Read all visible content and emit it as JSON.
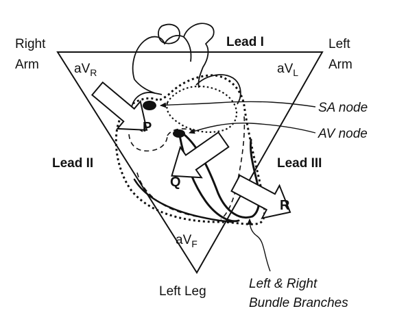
{
  "labels": {
    "right_arm_1": "Right",
    "right_arm_2": "Arm",
    "left_arm_1": "Left",
    "left_arm_2": "Arm",
    "left_leg": "Left Leg",
    "lead_i": "Lead I",
    "lead_ii": "Lead II",
    "lead_iii": "Lead III",
    "avr_main": "aV",
    "avr_sub": "R",
    "avl_main": "aV",
    "avl_sub": "L",
    "avf_main": "aV",
    "avf_sub": "F",
    "sa_node": "SA node",
    "av_node": "AV node",
    "bundle_1": "Left & Right",
    "bundle_2": "Bundle Branches",
    "wave_p": "P",
    "wave_q": "Q",
    "wave_r": "R"
  },
  "colors": {
    "ink": "#111111",
    "background": "#ffffff"
  }
}
